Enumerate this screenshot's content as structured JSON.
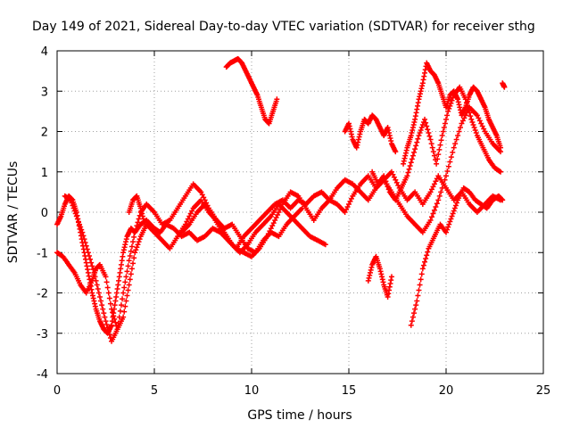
{
  "chart_data": {
    "type": "scatter",
    "title": "Day 149 of 2021, Sidereal Day-to-day VTEC variation (SDTVAR) for receiver sthg",
    "xlabel": "GPS time / hours",
    "ylabel": "SDTVAR / TECUs",
    "xlim": [
      0,
      25
    ],
    "ylim": [
      -4,
      4
    ],
    "xticks": [
      0,
      5,
      10,
      15,
      20,
      25
    ],
    "yticks": [
      -4,
      -3,
      -2,
      -1,
      0,
      1,
      2,
      3,
      4
    ],
    "grid": true,
    "marker": "+",
    "color": "#ff0000",
    "series": [
      {
        "name": "s1",
        "x": [
          0.0,
          0.2,
          0.4,
          0.6,
          0.8,
          1.0,
          1.2,
          1.4,
          1.6,
          1.8,
          2.0,
          2.2,
          2.4,
          2.6,
          2.8,
          3.0,
          3.2,
          3.4,
          3.6,
          3.8,
          4.0,
          4.3,
          4.6,
          5.0,
          5.3,
          5.6,
          6.0,
          6.4,
          6.8,
          7.2,
          7.6,
          8.0,
          8.4,
          8.8,
          9.2,
          9.6,
          10.0,
          10.4,
          10.8,
          11.2,
          11.6,
          12.0,
          12.4,
          12.8,
          13.2,
          13.6,
          14.0,
          14.4,
          14.8,
          15.2,
          15.6,
          16.0,
          16.4,
          16.8,
          17.2,
          17.6,
          18.0,
          18.4,
          18.8,
          19.2,
          19.6,
          20.0,
          20.4,
          20.8,
          21.2,
          21.6,
          22.0,
          22.4,
          22.8
        ],
        "y": [
          -0.3,
          -0.1,
          0.2,
          0.4,
          0.3,
          0.0,
          -0.5,
          -1.0,
          -1.5,
          -2.0,
          -2.4,
          -2.7,
          -2.9,
          -3.0,
          -2.8,
          -2.2,
          -1.6,
          -1.0,
          -0.6,
          -0.4,
          -0.5,
          -0.3,
          -0.2,
          -0.4,
          -0.5,
          -0.3,
          -0.4,
          -0.6,
          -0.5,
          -0.7,
          -0.6,
          -0.4,
          -0.5,
          -0.7,
          -0.9,
          -0.6,
          -0.4,
          -0.2,
          0.0,
          0.2,
          0.3,
          0.1,
          0.3,
          0.2,
          0.4,
          0.5,
          0.3,
          0.6,
          0.8,
          0.7,
          0.5,
          0.3,
          0.6,
          0.8,
          1.0,
          0.6,
          0.3,
          0.5,
          0.2,
          0.5,
          0.9,
          0.6,
          0.3,
          0.5,
          0.2,
          0.0,
          0.2,
          0.4,
          0.3
        ]
      },
      {
        "name": "s2",
        "x": [
          0.0,
          0.3,
          0.6,
          0.9,
          1.2,
          1.5,
          1.8,
          2.0,
          2.2,
          2.5,
          2.8,
          3.1,
          3.4,
          3.7,
          4.0,
          4.3,
          4.6,
          5.0,
          5.4,
          5.8,
          6.2,
          6.6,
          7.0,
          7.4,
          7.8,
          8.2,
          8.6,
          9.0,
          9.4,
          9.8,
          10.2,
          10.6,
          11.0,
          11.4,
          11.8,
          12.2,
          12.6,
          13.0,
          13.4,
          13.8
        ],
        "y": [
          -1.0,
          -1.1,
          -1.3,
          -1.5,
          -1.8,
          -2.0,
          -1.7,
          -1.4,
          -1.3,
          -1.6,
          -2.4,
          -2.9,
          -2.6,
          -1.8,
          -1.0,
          -0.6,
          -0.3,
          -0.5,
          -0.7,
          -0.9,
          -0.6,
          -0.3,
          0.1,
          0.3,
          0.0,
          -0.2,
          -0.5,
          -0.8,
          -1.0,
          -0.8,
          -0.5,
          -0.3,
          -0.1,
          0.2,
          0.0,
          -0.2,
          -0.4,
          -0.6,
          -0.7,
          -0.8
        ]
      },
      {
        "name": "s3",
        "x": [
          0.4,
          0.7,
          1.0,
          1.3,
          1.6,
          1.9,
          2.2,
          2.5,
          2.8,
          3.1,
          3.4,
          3.7,
          4.0,
          4.3,
          4.6,
          5.0,
          5.4,
          5.8,
          6.2,
          6.6,
          7.0,
          7.4,
          7.8,
          8.2,
          8.6,
          9.0,
          9.4,
          9.8,
          10.2,
          10.6,
          11.0,
          11.4,
          11.8,
          12.2,
          12.6
        ],
        "y": [
          0.4,
          0.3,
          -0.1,
          -0.5,
          -1.0,
          -1.5,
          -2.1,
          -2.7,
          -3.2,
          -2.9,
          -2.0,
          -1.2,
          -0.5,
          0.0,
          0.2,
          0.0,
          -0.3,
          -0.2,
          0.1,
          0.4,
          0.7,
          0.5,
          0.1,
          -0.2,
          -0.4,
          -0.3,
          -0.6,
          -0.9,
          -1.0,
          -0.7,
          -0.5,
          -0.6,
          -0.3,
          -0.1,
          0.1
        ]
      },
      {
        "name": "s4",
        "x": [
          3.7,
          3.9,
          4.1,
          4.3,
          4.5
        ],
        "y": [
          0.0,
          0.3,
          0.4,
          0.1,
          -0.3
        ]
      },
      {
        "name": "s5",
        "x": [
          6.4,
          6.8,
          7.2,
          7.6,
          8.0,
          8.4,
          8.8,
          9.2,
          9.6,
          10.0,
          10.4,
          10.8,
          11.2,
          11.6,
          12.0,
          12.4,
          12.8,
          13.2,
          13.6,
          14.0,
          14.4,
          14.8,
          15.2,
          15.6,
          16.0,
          16.4,
          16.8,
          17.2,
          17.6,
          18.0,
          18.4,
          18.8,
          19.2,
          19.6,
          20.0,
          20.4,
          20.8,
          21.2,
          21.6,
          22.0,
          22.4,
          22.8
        ],
        "y": [
          -0.5,
          -0.3,
          0.0,
          0.2,
          -0.1,
          -0.4,
          -0.7,
          -0.9,
          -1.0,
          -1.1,
          -0.9,
          -0.6,
          -0.2,
          0.2,
          0.5,
          0.4,
          0.1,
          -0.2,
          0.1,
          0.3,
          0.2,
          0.0,
          0.4,
          0.7,
          0.9,
          0.6,
          0.8,
          0.5,
          0.2,
          -0.1,
          -0.3,
          -0.5,
          -0.2,
          0.3,
          0.9,
          1.6,
          2.2,
          2.6,
          2.4,
          2.0,
          1.7,
          1.5
        ]
      },
      {
        "name": "s6",
        "x": [
          8.7,
          8.9,
          9.1,
          9.3,
          9.5,
          9.7,
          9.9,
          10.1,
          10.3,
          10.5,
          10.7,
          10.9,
          11.1,
          11.3
        ],
        "y": [
          3.6,
          3.7,
          3.75,
          3.8,
          3.7,
          3.5,
          3.3,
          3.1,
          2.9,
          2.6,
          2.3,
          2.2,
          2.5,
          2.8
        ]
      },
      {
        "name": "s7",
        "x": [
          14.8,
          15.0,
          15.2,
          15.4,
          15.6,
          15.8,
          16.0,
          16.2,
          16.4,
          16.6,
          16.8,
          17.0,
          17.2,
          17.4
        ],
        "y": [
          2.0,
          2.2,
          1.8,
          1.6,
          2.0,
          2.3,
          2.2,
          2.4,
          2.3,
          2.1,
          1.9,
          2.1,
          1.7,
          1.5
        ]
      },
      {
        "name": "s8",
        "x": [
          16.2,
          16.5,
          16.8,
          17.1,
          17.4,
          17.7,
          18.0,
          18.3,
          18.6,
          18.9,
          19.2,
          19.5,
          19.8,
          20.1,
          20.4,
          20.7,
          21.0,
          21.3,
          21.6,
          21.9,
          22.2,
          22.5,
          22.8
        ],
        "y": [
          1.0,
          0.7,
          0.9,
          0.5,
          0.3,
          0.6,
          0.9,
          1.4,
          1.9,
          2.3,
          1.8,
          1.2,
          1.9,
          2.5,
          2.9,
          3.1,
          2.8,
          2.3,
          1.9,
          1.6,
          1.3,
          1.1,
          1.0
        ]
      },
      {
        "name": "s9",
        "x": [
          17.8,
          18.0,
          18.2,
          18.4,
          18.6,
          18.8,
          19.0,
          19.2,
          19.4,
          19.6,
          19.8,
          20.0,
          20.2,
          20.4,
          20.6,
          20.8,
          21.0,
          21.2,
          21.4,
          21.6,
          21.8,
          22.0,
          22.2,
          22.4,
          22.6,
          22.8
        ],
        "y": [
          1.2,
          1.6,
          1.9,
          2.3,
          2.8,
          3.2,
          3.7,
          3.5,
          3.4,
          3.2,
          2.9,
          2.6,
          2.9,
          3.0,
          2.8,
          2.4,
          2.6,
          2.9,
          3.1,
          3.0,
          2.8,
          2.6,
          2.3,
          2.1,
          1.9,
          1.6
        ]
      },
      {
        "name": "s10",
        "x": [
          16.0,
          16.2,
          16.4,
          16.6,
          16.8,
          17.0,
          17.2
        ],
        "y": [
          -1.7,
          -1.3,
          -1.1,
          -1.4,
          -1.8,
          -2.1,
          -1.6
        ]
      },
      {
        "name": "s11",
        "x": [
          18.2,
          18.5,
          18.8,
          19.1,
          19.4,
          19.7,
          20.0,
          20.3,
          20.6,
          20.9,
          21.2,
          21.5,
          21.8,
          22.1,
          22.4,
          22.7,
          22.9
        ],
        "y": [
          -2.8,
          -2.2,
          -1.4,
          -0.9,
          -0.6,
          -0.3,
          -0.5,
          -0.1,
          0.3,
          0.6,
          0.5,
          0.3,
          0.2,
          0.1,
          0.3,
          0.4,
          0.3
        ]
      },
      {
        "name": "s12",
        "x": [
          22.9,
          23.0
        ],
        "y": [
          3.2,
          3.1
        ]
      }
    ]
  }
}
